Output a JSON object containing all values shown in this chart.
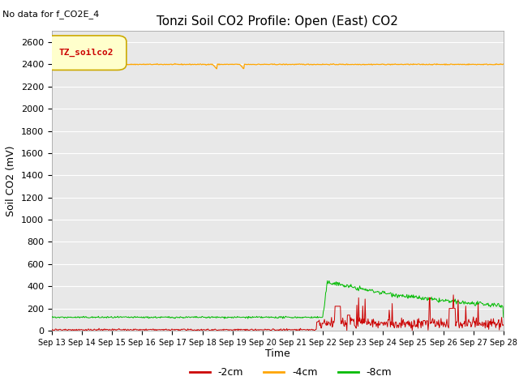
{
  "title": "Tonzi Soil CO2 Profile: Open (East) CO2",
  "no_data_text": "No data for f_CO2E_4",
  "ylabel": "Soil CO2 (mV)",
  "xlabel": "Time",
  "ylim": [
    0,
    2700
  ],
  "yticks": [
    0,
    200,
    400,
    600,
    800,
    1000,
    1200,
    1400,
    1600,
    1800,
    2000,
    2200,
    2400,
    2600
  ],
  "x_start_day": 13,
  "x_end_day": 28,
  "x_tick_days": [
    13,
    14,
    15,
    16,
    17,
    18,
    19,
    20,
    21,
    22,
    23,
    24,
    25,
    26,
    27,
    28
  ],
  "x_tick_labels": [
    "Sep 13",
    "Sep 14",
    "Sep 15",
    "Sep 16",
    "Sep 17",
    "Sep 18",
    "Sep 19",
    "Sep 20",
    "Sep 21",
    "Sep 22",
    "Sep 23",
    "Sep 24",
    "Sep 25",
    "Sep 26",
    "Sep 27",
    "Sep 28"
  ],
  "colors": {
    "minus2cm": "#cc0000",
    "minus4cm": "#ffa500",
    "minus8cm": "#00bb00",
    "background": "#e8e8e8",
    "legend_bg": "#ffffcc",
    "legend_border": "#ccaa00"
  },
  "legend_entries": [
    "-2cm",
    "-4cm",
    "-8cm"
  ],
  "legend_label": "TZ_soilco2",
  "title_fontsize": 11,
  "axis_fontsize": 9,
  "tick_fontsize": 8
}
